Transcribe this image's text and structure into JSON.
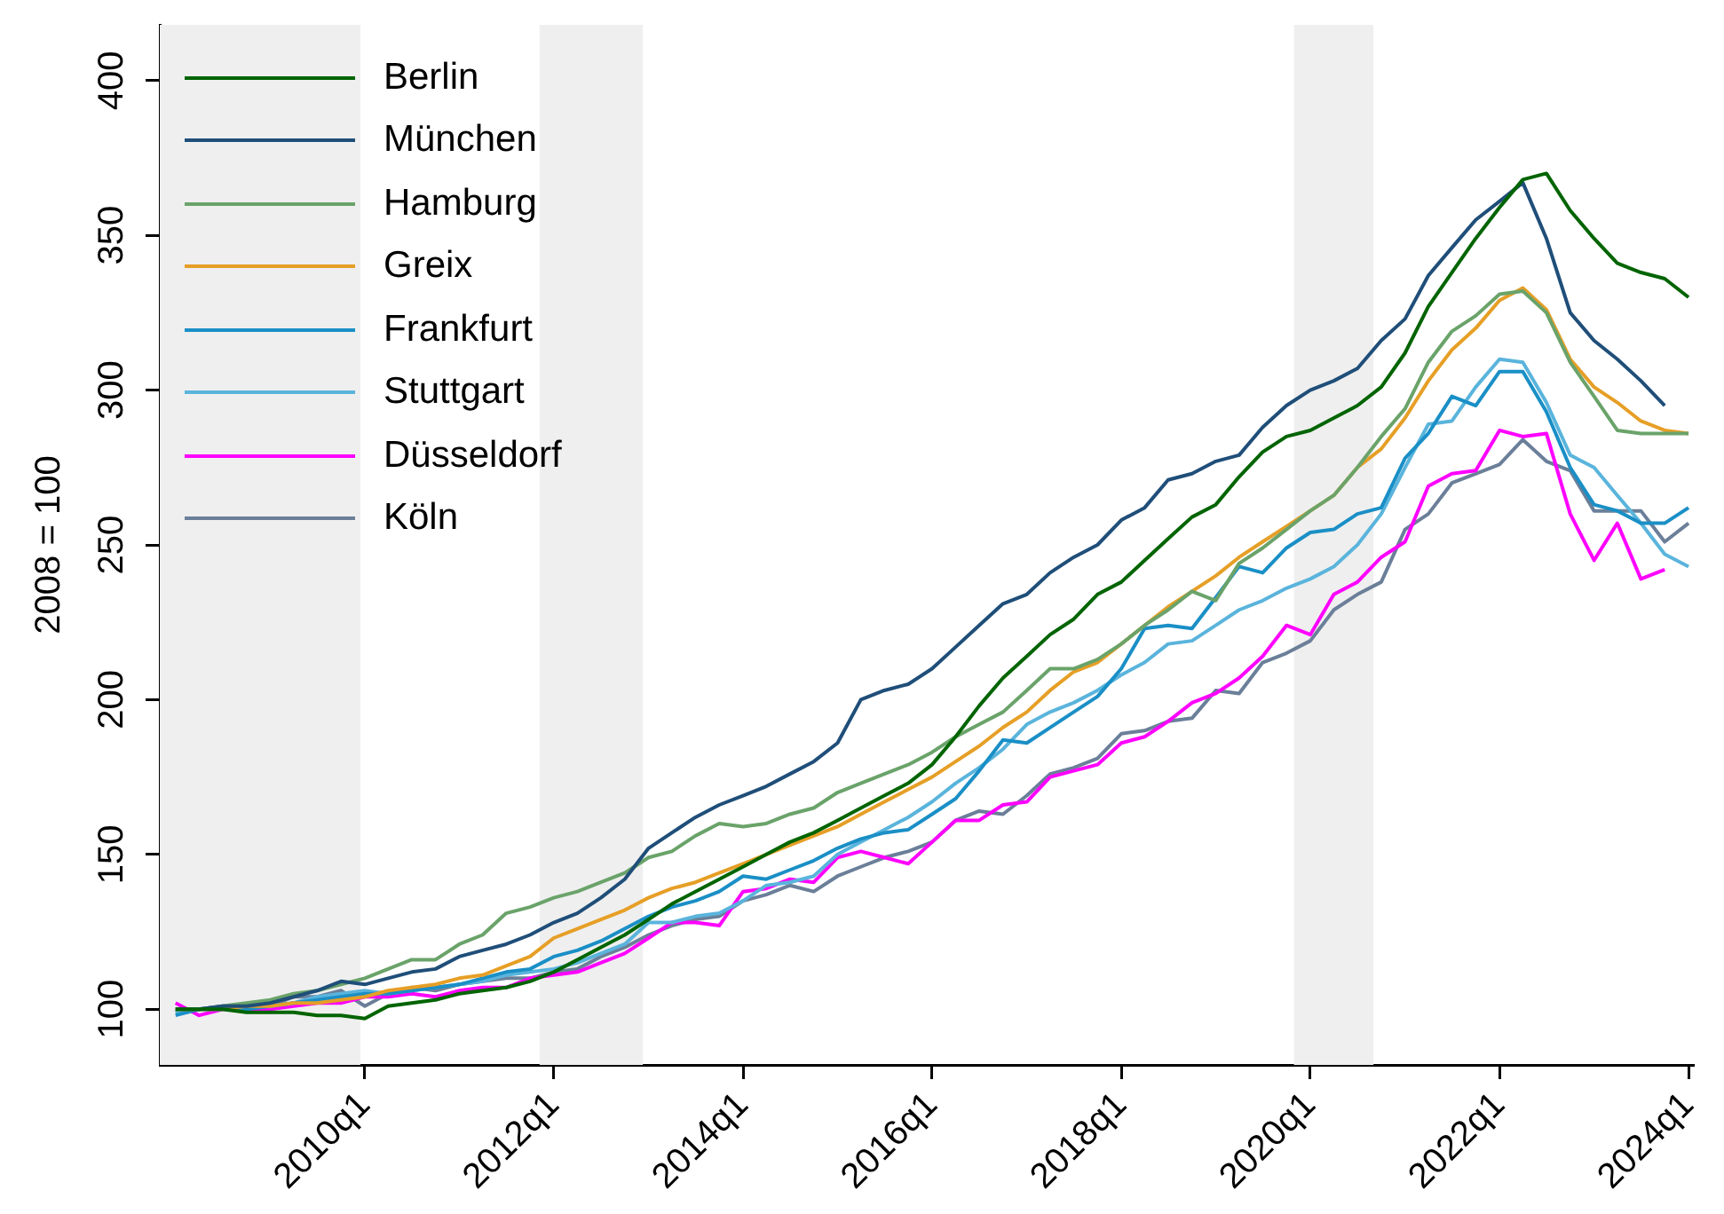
{
  "chart_data": {
    "type": "line",
    "ylabel": "2008 = 100",
    "x": [
      "2008-01",
      "2008-04",
      "2008-07",
      "2008-10",
      "2009-01",
      "2009-04",
      "2009-07",
      "2009-10",
      "2010-01",
      "2010-04",
      "2010-07",
      "2010-10",
      "2011-01",
      "2011-04",
      "2011-07",
      "2011-10",
      "2012-01",
      "2012-04",
      "2012-07",
      "2012-10",
      "2013-01",
      "2013-04",
      "2013-07",
      "2013-10",
      "2014-01",
      "2014-04",
      "2014-07",
      "2014-10",
      "2015-01",
      "2015-04",
      "2015-07",
      "2015-10",
      "2016-01",
      "2016-04",
      "2016-07",
      "2016-10",
      "2017-01",
      "2017-04",
      "2017-07",
      "2017-10",
      "2018-01",
      "2018-04",
      "2018-07",
      "2018-10",
      "2019-01",
      "2019-04",
      "2019-07",
      "2019-10",
      "2020-01",
      "2020-04",
      "2020-07",
      "2020-10",
      "2021-01",
      "2021-04",
      "2021-07",
      "2021-10",
      "2022-01",
      "2022-04",
      "2022-07",
      "2022-10",
      "2023-01",
      "2023-04",
      "2023-07",
      "2023-10",
      "2024-01"
    ],
    "series": [
      {
        "name": "Berlin",
        "color": "#006400",
        "values": [
          100,
          100,
          100,
          99,
          99,
          99,
          98,
          98,
          97,
          101,
          102,
          103,
          105,
          106,
          107,
          109,
          112,
          116,
          120,
          124,
          129,
          134,
          138,
          142,
          146,
          150,
          154,
          157,
          161,
          165,
          169,
          173,
          179,
          188,
          198,
          207,
          214,
          221,
          226,
          234,
          238,
          245,
          252,
          259,
          263,
          272,
          280,
          285,
          287,
          291,
          295,
          301,
          312,
          327,
          338,
          349,
          359,
          368,
          370,
          358,
          349,
          341,
          338,
          336,
          330
        ]
      },
      {
        "name": "München",
        "color": "#1f4e79",
        "values": [
          100,
          100,
          101,
          101,
          102,
          104,
          106,
          109,
          108,
          110,
          112,
          113,
          117,
          119,
          121,
          124,
          128,
          131,
          136,
          142,
          152,
          157,
          162,
          166,
          169,
          172,
          176,
          180,
          186,
          200,
          203,
          205,
          210,
          217,
          224,
          231,
          234,
          241,
          246,
          250,
          258,
          262,
          271,
          273,
          277,
          279,
          288,
          295,
          300,
          303,
          307,
          316,
          323,
          337,
          346,
          355,
          361,
          367,
          349,
          325,
          316,
          310,
          303,
          295,
          null
        ]
      },
      {
        "name": "Hamburg",
        "color": "#6aa36a",
        "values": [
          100,
          100,
          101,
          102,
          103,
          105,
          106,
          108,
          110,
          113,
          116,
          116,
          121,
          124,
          131,
          133,
          136,
          138,
          141,
          144,
          149,
          151,
          156,
          160,
          159,
          160,
          163,
          165,
          170,
          173,
          176,
          179,
          183,
          188,
          192,
          196,
          203,
          210,
          210,
          213,
          218,
          224,
          229,
          235,
          232,
          244,
          249,
          255,
          261,
          266,
          275,
          285,
          294,
          309,
          319,
          324,
          331,
          332,
          325,
          309,
          298,
          287,
          286,
          286,
          286
        ]
      },
      {
        "name": "Greix",
        "color": "#e69f26",
        "values": [
          100,
          100,
          100,
          101,
          101,
          102,
          102,
          103,
          104,
          106,
          107,
          108,
          110,
          111,
          114,
          117,
          123,
          126,
          129,
          132,
          136,
          139,
          141,
          144,
          147,
          150,
          153,
          156,
          159,
          163,
          167,
          171,
          175,
          180,
          185,
          191,
          196,
          203,
          209,
          212,
          218,
          224,
          230,
          235,
          240,
          246,
          251,
          256,
          261,
          266,
          275,
          281,
          291,
          303,
          313,
          320,
          329,
          333,
          326,
          310,
          301,
          296,
          290,
          287,
          286
        ]
      },
      {
        "name": "Frankfurt",
        "color": "#1a8fc6",
        "values": [
          98,
          100,
          100,
          100,
          101,
          102,
          103,
          104,
          105,
          105,
          106,
          107,
          108,
          110,
          112,
          113,
          117,
          119,
          122,
          126,
          130,
          133,
          135,
          138,
          143,
          142,
          145,
          148,
          152,
          155,
          157,
          158,
          163,
          168,
          177,
          187,
          186,
          191,
          196,
          201,
          210,
          223,
          224,
          223,
          233,
          243,
          241,
          249,
          254,
          255,
          260,
          262,
          278,
          286,
          298,
          295,
          306,
          306,
          293,
          275,
          263,
          261,
          257,
          257,
          262
        ]
      },
      {
        "name": "Stuttgart",
        "color": "#5ab4dc",
        "values": [
          99,
          100,
          100,
          101,
          101,
          102,
          104,
          105,
          106,
          105,
          106,
          107,
          108,
          109,
          111,
          112,
          113,
          115,
          118,
          121,
          128,
          128,
          130,
          131,
          135,
          140,
          141,
          143,
          150,
          154,
          158,
          162,
          167,
          173,
          178,
          184,
          192,
          196,
          199,
          203,
          208,
          212,
          218,
          219,
          224,
          229,
          232,
          236,
          239,
          243,
          250,
          260,
          275,
          289,
          290,
          301,
          310,
          309,
          296,
          279,
          275,
          266,
          257,
          247,
          243
        ]
      },
      {
        "name": "Düsseldorf",
        "color": "#ff00ff",
        "values": [
          102,
          98,
          100,
          100,
          100,
          101,
          102,
          102,
          104,
          104,
          105,
          104,
          106,
          107,
          107,
          110,
          111,
          112,
          115,
          118,
          123,
          128,
          128,
          127,
          138,
          139,
          142,
          141,
          149,
          151,
          149,
          147,
          154,
          161,
          161,
          166,
          167,
          175,
          177,
          179,
          186,
          188,
          193,
          199,
          202,
          207,
          214,
          224,
          221,
          234,
          238,
          246,
          251,
          269,
          273,
          274,
          287,
          285,
          286,
          260,
          245,
          257,
          239,
          242,
          null
        ]
      },
      {
        "name": "Köln",
        "color": "#6b7f99",
        "values": [
          99,
          100,
          101,
          100,
          101,
          104,
          104,
          106,
          101,
          105,
          107,
          106,
          108,
          109,
          110,
          110,
          112,
          113,
          117,
          120,
          124,
          127,
          129,
          130,
          135,
          137,
          140,
          138,
          143,
          146,
          149,
          151,
          154,
          161,
          164,
          163,
          169,
          176,
          178,
          181,
          189,
          190,
          193,
          194,
          203,
          202,
          212,
          215,
          219,
          229,
          234,
          238,
          255,
          260,
          270,
          273,
          276,
          284,
          277,
          274,
          261,
          261,
          261,
          251,
          257
        ]
      }
    ],
    "xlim": [
      "2007-11-01",
      "2024-01-20"
    ],
    "xticks": [
      {
        "value": "2010-01",
        "label": "2010q1"
      },
      {
        "value": "2012-01",
        "label": "2012q1"
      },
      {
        "value": "2014-01",
        "label": "2014q1"
      },
      {
        "value": "2016-01",
        "label": "2016q1"
      },
      {
        "value": "2018-01",
        "label": "2018q1"
      },
      {
        "value": "2020-01",
        "label": "2020q1"
      },
      {
        "value": "2022-01",
        "label": "2022q1"
      },
      {
        "value": "2024-01",
        "label": "2024q1"
      }
    ],
    "ylim": [
      82,
      418
    ],
    "yticks": [
      100,
      150,
      200,
      250,
      300,
      350,
      400
    ],
    "bands": [
      {
        "axis": "x",
        "from": "2007-11-01",
        "to": "2009-12-15",
        "color": "#efefef"
      },
      {
        "axis": "x",
        "from": "2011-11-07",
        "to": "2012-12-10",
        "color": "#efefef"
      },
      {
        "axis": "x",
        "from": "2019-10-30",
        "to": "2020-09-01",
        "color": "#efefef"
      }
    ],
    "legend": "top left"
  }
}
